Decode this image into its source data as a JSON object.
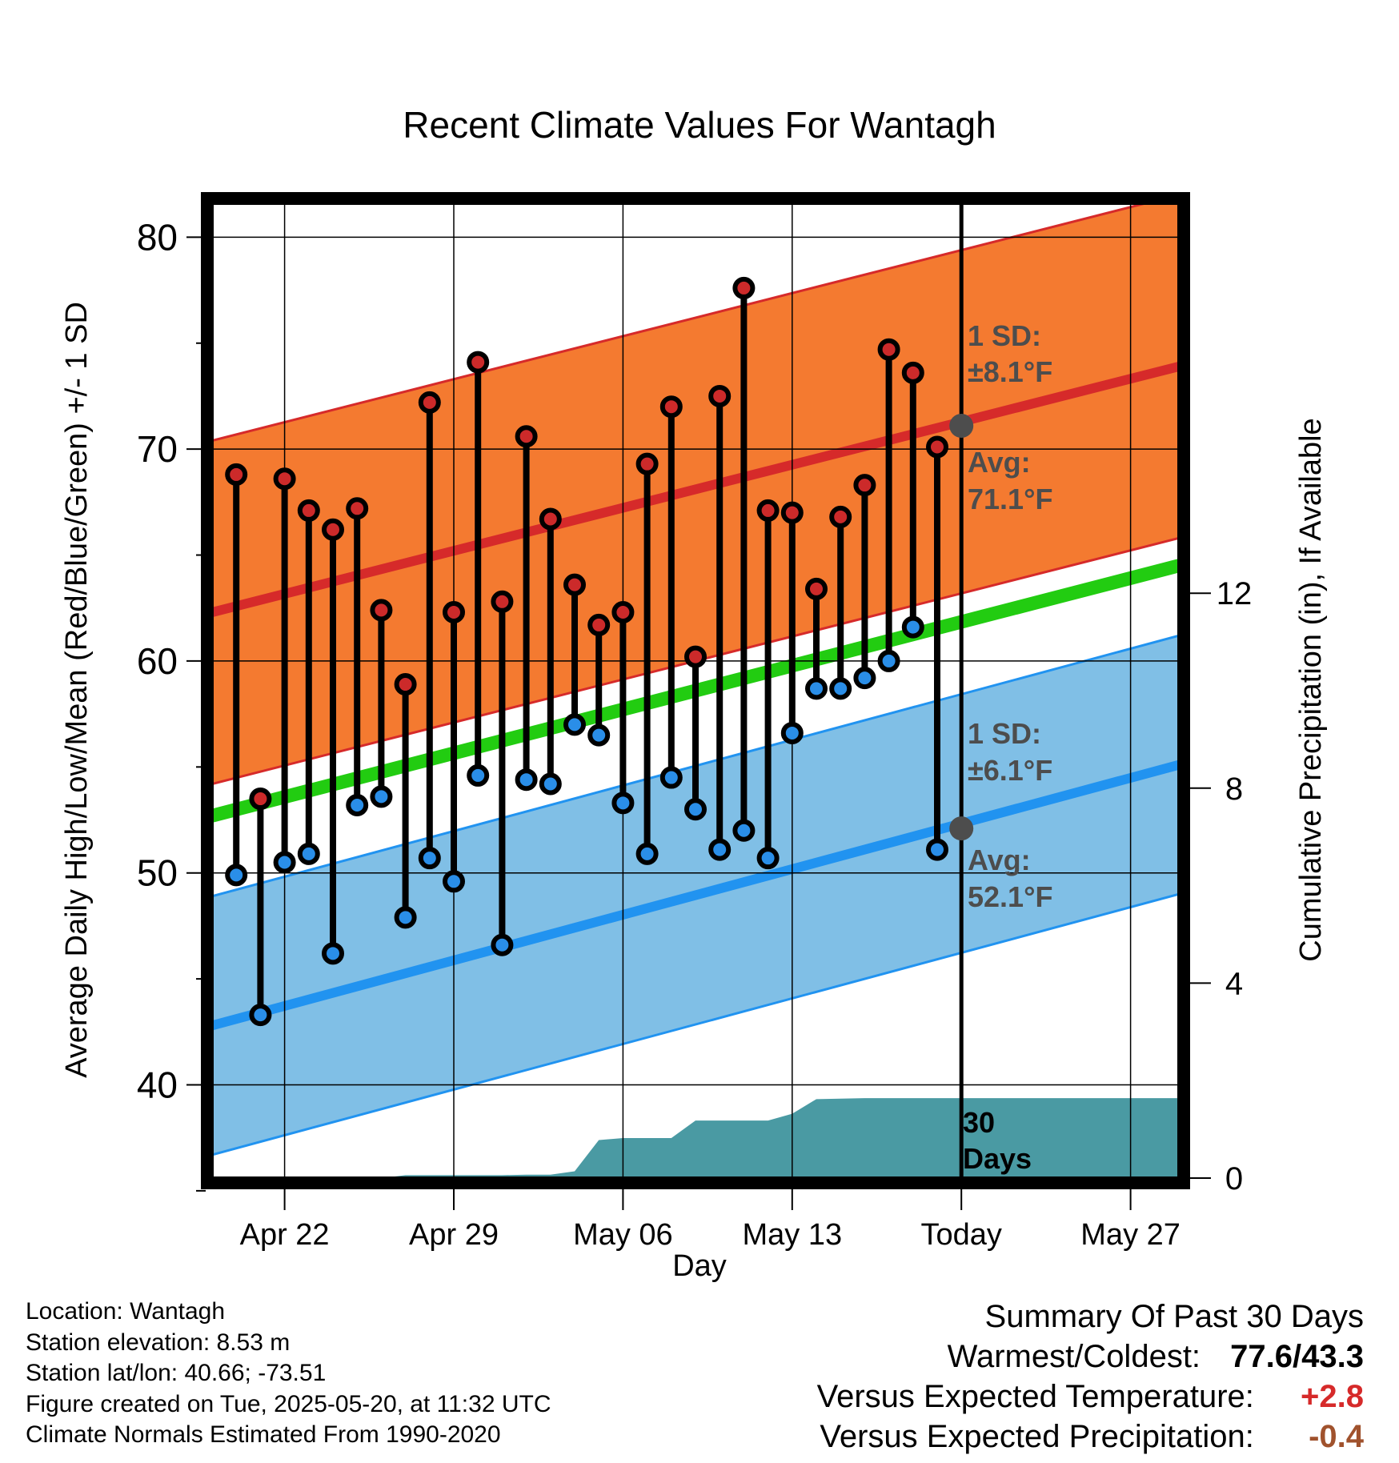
{
  "title": "Recent Climate Values For Wantagh",
  "y_axis_label": "Average Daily High/Low/Mean (Red/Blue/Green) +/- 1 SD",
  "y2_axis_label": "Cumulative Precipitation (in), If Available",
  "x_axis_label": "Day",
  "colors": {
    "high_band": "#f47a30",
    "high_mean": "#d62a2a",
    "low_band": "#80bfe6",
    "low_mean": "#2193f0",
    "mean_line": "#22cc11",
    "precip": "#4a9aa3",
    "high_dot": "#cc2a2a",
    "low_dot": "#2a8ee8",
    "annotation": "#4d4d4d",
    "temp_anomaly": "#d62a2a",
    "precip_anomaly": "#a0522d"
  },
  "annotations": {
    "high_sd_label": "1 SD:",
    "high_sd_value": "±8.1°F",
    "high_avg_label": "Avg:",
    "high_avg_value": "71.1°F",
    "low_sd_label": "1 SD:",
    "low_sd_value": "±6.1°F",
    "low_avg_label": "Avg:",
    "low_avg_value": "52.1°F",
    "days_label_1": "30",
    "days_label_2": "Days"
  },
  "info": {
    "location": "Location: Wantagh",
    "elevation": "Station elevation: 8.53 m",
    "latlon": "Station lat/lon: 40.66; -73.51",
    "created": "Figure created on Tue, 2025-05-20, at 11:32 UTC",
    "normals": "Climate Normals Estimated From 1990-2020"
  },
  "summary": {
    "heading": "Summary Of Past 30 Days",
    "warmest_label": "Warmest/Coldest:",
    "warmest_value": "77.6/43.3",
    "temp_label": "Versus Expected Temperature:",
    "temp_value": "+2.8",
    "precip_label": "Versus Expected Precipitation:",
    "precip_value": "-0.4"
  },
  "chart_data": {
    "type": "line",
    "title": "Recent Climate Values For Wantagh",
    "xlabel": "Day",
    "ylabel": "Average Daily High/Low/Mean (Red/Blue/Green) +/- 1 SD",
    "y2label": "Cumulative Precipitation (in), If Available",
    "x_tick_labels": [
      "Apr 22",
      "Apr 29",
      "May 06",
      "May 13",
      "Today",
      "May 27"
    ],
    "x_tick_dates": [
      "2025-04-22",
      "2025-04-29",
      "2025-05-06",
      "2025-05-13",
      "2025-05-20",
      "2025-05-27"
    ],
    "x_range": [
      "2025-04-19",
      "2025-05-29"
    ],
    "today": "2025-05-20",
    "y_ticks": [
      40,
      50,
      60,
      70,
      80
    ],
    "ylim": [
      35.6,
      81.6
    ],
    "y2_ticks": [
      0,
      4,
      8,
      12
    ],
    "y2lim": [
      0,
      20
    ],
    "grid": true,
    "daily_dates": [
      "2025-04-20",
      "2025-04-21",
      "2025-04-22",
      "2025-04-23",
      "2025-04-24",
      "2025-04-25",
      "2025-04-26",
      "2025-04-27",
      "2025-04-28",
      "2025-04-29",
      "2025-04-30",
      "2025-05-01",
      "2025-05-02",
      "2025-05-03",
      "2025-05-04",
      "2025-05-05",
      "2025-05-06",
      "2025-05-07",
      "2025-05-08",
      "2025-05-09",
      "2025-05-10",
      "2025-05-11",
      "2025-05-12",
      "2025-05-13",
      "2025-05-14",
      "2025-05-15",
      "2025-05-16",
      "2025-05-17",
      "2025-05-18",
      "2025-05-19"
    ],
    "series": [
      {
        "name": "High",
        "values": [
          68.8,
          53.5,
          68.6,
          67.1,
          66.2,
          67.2,
          62.4,
          58.9,
          72.2,
          62.3,
          74.1,
          62.8,
          70.6,
          66.7,
          63.6,
          61.7,
          62.3,
          69.3,
          72.0,
          60.2,
          72.5,
          77.6,
          67.1,
          67.0,
          63.4,
          66.8,
          68.3,
          74.7,
          73.6,
          70.1
        ]
      },
      {
        "name": "Low",
        "values": [
          49.9,
          43.3,
          50.5,
          50.9,
          46.2,
          53.2,
          53.6,
          47.9,
          50.7,
          49.6,
          54.6,
          46.6,
          54.4,
          54.2,
          57.0,
          56.5,
          53.3,
          50.9,
          54.5,
          53.0,
          51.1,
          52.0,
          50.7,
          56.6,
          58.7,
          58.7,
          59.2,
          60.0,
          61.6,
          51.1
        ]
      },
      {
        "name": "Normal High",
        "start": 62.3,
        "end": 73.9,
        "sd": 8.1
      },
      {
        "name": "Normal Mean",
        "start": 52.7,
        "end": 64.5
      },
      {
        "name": "Normal Low",
        "start": 42.8,
        "end": 55.1,
        "sd": 6.1
      },
      {
        "name": "Cumulative Precipitation",
        "points": [
          [
            "2025-04-19",
            0
          ],
          [
            "2025-04-26",
            0
          ],
          [
            "2025-04-27",
            0.06
          ],
          [
            "2025-05-01",
            0.06
          ],
          [
            "2025-05-02",
            0.07
          ],
          [
            "2025-05-03",
            0.07
          ],
          [
            "2025-05-04",
            0.14
          ],
          [
            "2025-05-05",
            0.78
          ],
          [
            "2025-05-06",
            0.82
          ],
          [
            "2025-05-08",
            0.82
          ],
          [
            "2025-05-09",
            1.18
          ],
          [
            "2025-05-12",
            1.18
          ],
          [
            "2025-05-13",
            1.32
          ],
          [
            "2025-05-14",
            1.62
          ],
          [
            "2025-05-16",
            1.64
          ],
          [
            "2025-05-29",
            1.64
          ]
        ]
      }
    ],
    "today_high_normal": 71.1,
    "today_low_normal": 52.1
  }
}
